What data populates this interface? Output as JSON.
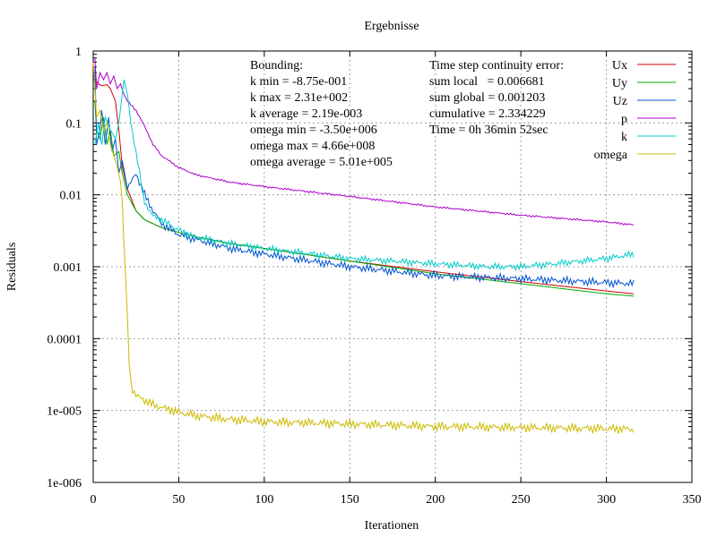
{
  "chart_data": {
    "type": "line",
    "title": "Ergebnisse",
    "xlabel": "Iterationen",
    "ylabel": "Residuals",
    "yscale": "log",
    "xlim": [
      0,
      350
    ],
    "ylim": [
      1e-06,
      1
    ],
    "xticks": [
      0,
      50,
      100,
      150,
      200,
      250,
      300,
      350
    ],
    "yticks": [
      {
        "value": 1,
        "label": "1"
      },
      {
        "value": 0.1,
        "label": "0.1"
      },
      {
        "value": 0.01,
        "label": "0.01"
      },
      {
        "value": 0.001,
        "label": "0.001"
      },
      {
        "value": 0.0001,
        "label": "0.0001"
      },
      {
        "value": 1e-05,
        "label": "1e-005"
      },
      {
        "value": 1e-06,
        "label": "1e-006"
      }
    ],
    "grid": true,
    "legend_position": "top-right",
    "bounding_lines": [
      "Bounding:",
      "k min = -8.75e-001",
      "k max = 2.31e+002",
      "k average = 2.19e-003",
      "omega min = -3.50e+006",
      "omega max = 4.66e+008",
      "omega average = 5.01e+005"
    ],
    "continuity_lines": [
      "Time step continuity error:",
      "sum local   = 0.006681",
      "sum global = 0.001203",
      "cumulative = 2.334229",
      "Time = 0h 36min 52sec"
    ],
    "noise": {
      "Uz": 0.06,
      "p": 0.015,
      "k": 0.05,
      "omega": 0.07
    },
    "series": [
      {
        "name": "Ux",
        "color": "#cc0000",
        "x": [
          1,
          3,
          5,
          8,
          10,
          13,
          15,
          17,
          20,
          25,
          30,
          40,
          50,
          60,
          80,
          100,
          150,
          200,
          250,
          300,
          316
        ],
        "y": [
          0.4,
          0.35,
          0.33,
          0.34,
          0.3,
          0.2,
          0.08,
          0.025,
          0.012,
          0.006,
          0.0045,
          0.0035,
          0.003,
          0.0026,
          0.0021,
          0.0018,
          0.0012,
          0.00085,
          0.00062,
          0.00046,
          0.00042
        ]
      },
      {
        "name": "Uy",
        "color": "#00aa00",
        "x": [
          1,
          2,
          4,
          6,
          8,
          10,
          12,
          15,
          17,
          20,
          25,
          30,
          40,
          50,
          60,
          80,
          100,
          150,
          200,
          250,
          300,
          316
        ],
        "y": [
          0.2,
          0.08,
          0.06,
          0.12,
          0.05,
          0.08,
          0.035,
          0.04,
          0.02,
          0.01,
          0.006,
          0.0045,
          0.0035,
          0.003,
          0.0026,
          0.0021,
          0.0018,
          0.0012,
          0.0008,
          0.00058,
          0.00042,
          0.00039
        ]
      },
      {
        "name": "Uz",
        "color": "#0055cc",
        "x": [
          1,
          2,
          4,
          5,
          7,
          9,
          11,
          13,
          15,
          17,
          20,
          25,
          30,
          35,
          40,
          50,
          60,
          80,
          100,
          150,
          200,
          250,
          300,
          316
        ],
        "y": [
          0.6,
          0.05,
          0.08,
          0.15,
          0.05,
          0.12,
          0.04,
          0.06,
          0.02,
          0.03,
          0.012,
          0.02,
          0.01,
          0.006,
          0.004,
          0.0028,
          0.0024,
          0.0018,
          0.0015,
          0.001,
          0.00075,
          0.00068,
          0.0006,
          0.00058
        ]
      },
      {
        "name": "p",
        "color": "#aa00cc",
        "x": [
          1,
          2,
          4,
          6,
          8,
          10,
          12,
          14,
          16,
          18,
          20,
          25,
          30,
          35,
          40,
          50,
          60,
          80,
          100,
          150,
          200,
          250,
          300,
          316
        ],
        "y": [
          0.8,
          0.3,
          0.5,
          0.4,
          0.5,
          0.35,
          0.45,
          0.3,
          0.35,
          0.25,
          0.2,
          0.15,
          0.09,
          0.05,
          0.035,
          0.024,
          0.019,
          0.015,
          0.013,
          0.0095,
          0.0068,
          0.0052,
          0.0042,
          0.0038
        ]
      },
      {
        "name": "k",
        "color": "#00cccc",
        "x": [
          1,
          3,
          5,
          7,
          10,
          13,
          15,
          18,
          20,
          22,
          25,
          28,
          30,
          35,
          40,
          50,
          60,
          80,
          100,
          150,
          200,
          230,
          250,
          270,
          300,
          316
        ],
        "y": [
          0.05,
          0.1,
          0.05,
          0.12,
          0.08,
          0.06,
          0.1,
          0.4,
          0.25,
          0.1,
          0.04,
          0.015,
          0.008,
          0.005,
          0.0045,
          0.0032,
          0.0026,
          0.0021,
          0.0018,
          0.0013,
          0.0011,
          0.001,
          0.001,
          0.0011,
          0.0013,
          0.0015
        ]
      },
      {
        "name": "omega",
        "color": "#ccbb00",
        "x": [
          0,
          1,
          2,
          4,
          6,
          8,
          10,
          12,
          14,
          16,
          17,
          18,
          20,
          21,
          22,
          23,
          25,
          30,
          35,
          40,
          50,
          60,
          80,
          100,
          150,
          200,
          250,
          300,
          316
        ],
        "y": [
          0.7,
          0.3,
          0.12,
          0.15,
          0.08,
          0.1,
          0.05,
          0.035,
          0.025,
          0.015,
          0.008,
          0.002,
          0.0002,
          5e-05,
          2.5e-05,
          2e-05,
          1.6e-05,
          1.4e-05,
          1.2e-05,
          1.1e-05,
          9.5e-06,
          8.5e-06,
          7.5e-06,
          7e-06,
          6.5e-06,
          6e-06,
          5.8e-06,
          5.6e-06,
          5.5e-06
        ]
      }
    ]
  }
}
